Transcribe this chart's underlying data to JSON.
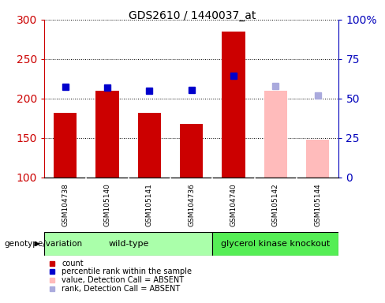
{
  "title": "GDS2610 / 1440037_at",
  "samples": [
    "GSM104738",
    "GSM105140",
    "GSM105141",
    "GSM104736",
    "GSM104740",
    "GSM105142",
    "GSM105144"
  ],
  "bar_values": [
    182,
    210,
    182,
    168,
    285,
    210,
    148
  ],
  "bar_colors": [
    "#cc0000",
    "#cc0000",
    "#cc0000",
    "#cc0000",
    "#cc0000",
    "#ffbbbb",
    "#ffbbbb"
  ],
  "rank_values": [
    215,
    214,
    210,
    211,
    229,
    216,
    204
  ],
  "rank_colors": [
    "#0000cc",
    "#0000cc",
    "#0000cc",
    "#0000cc",
    "#0000cc",
    "#aaaadd",
    "#aaaadd"
  ],
  "absent_flags": [
    false,
    false,
    false,
    false,
    false,
    true,
    true
  ],
  "ylim_left": [
    100,
    300
  ],
  "ylim_right": [
    0,
    100
  ],
  "yticks_left": [
    100,
    150,
    200,
    250,
    300
  ],
  "yticks_right": [
    0,
    25,
    50,
    75,
    100
  ],
  "ytick_labels_right": [
    "0",
    "25",
    "50",
    "75",
    "100%"
  ],
  "group_label_wt": "wild-type",
  "group_label_ko": "glycerol kinase knockout",
  "wt_count": 4,
  "ko_count": 3,
  "genotype_label": "genotype/variation",
  "legend_items": [
    {
      "label": "count",
      "color": "#cc0000"
    },
    {
      "label": "percentile rank within the sample",
      "color": "#0000cc"
    },
    {
      "label": "value, Detection Call = ABSENT",
      "color": "#ffbbbb"
    },
    {
      "label": "rank, Detection Call = ABSENT",
      "color": "#aaaadd"
    }
  ],
  "bar_width": 0.55,
  "rank_marker_size": 6,
  "left_axis_color": "#cc0000",
  "right_axis_color": "#0000bb",
  "wt_color": "#aaffaa",
  "ko_color": "#55ee55",
  "sample_bg_color": "#d0d0d0",
  "grid_color": "black"
}
